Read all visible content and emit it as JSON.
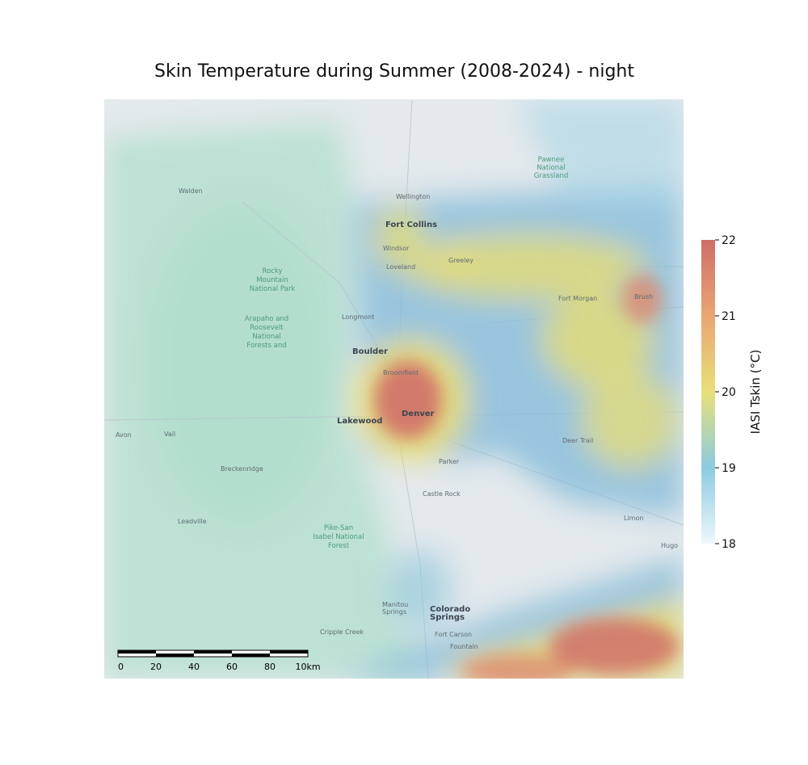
{
  "title": "Skin Temperature during Summer (2008-2024) - night",
  "colorbar": {
    "label": "IASI Tskin (°C)",
    "lim": [
      18,
      22
    ],
    "ticks": [
      18,
      19,
      20,
      21,
      22
    ]
  },
  "places": [
    "Fort Collins",
    "Windsor",
    "Loveland",
    "Greeley",
    "Longmont",
    "Boulder",
    "Broomfield",
    "Denver",
    "Lakewood",
    "Parker",
    "Castle Rock",
    "Colorado",
    "Springs",
    "Fort Carson",
    "Fountain",
    "Manitou",
    "Springs",
    "Cripple Creek",
    "Leadville",
    "Breckenridge",
    "Vail",
    "Avon",
    "Walden",
    "Wellington",
    "Fort Morgan",
    "Brush",
    "Deer Trail",
    "Limon",
    "Hugo"
  ],
  "areas": [
    "Rocky",
    "Mountain",
    "National Park",
    "Arapaho and",
    "Roosevelt",
    "National",
    "Forests and",
    "Pike-San",
    "Isabel National",
    "Forest",
    "Pawnee",
    "National",
    "Grassland"
  ],
  "scale_bar": {
    "labels": [
      "0",
      "20",
      "40",
      "60",
      "80",
      "10km"
    ]
  }
}
